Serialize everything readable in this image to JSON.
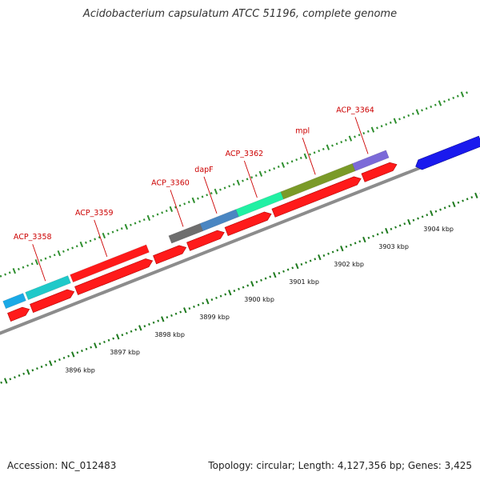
{
  "title": "Acidobacterium capsulatum ATCC 51196, complete genome",
  "footer": {
    "accession": "Accession: NC_012483",
    "summary": "Topology: circular; Length: 4,127,356 bp; Genes: 3,425"
  },
  "colors": {
    "backbone": "#8c8c8c",
    "cds": "#ff1a1a",
    "gene_label": "#cc0000",
    "tick_upper": "#2f8f2f",
    "tick_lower": "#1e7a1e"
  },
  "scale": {
    "unit": "kbp",
    "labels": [
      {
        "kbp": 3896,
        "text": "3896 kbp"
      },
      {
        "kbp": 3897,
        "text": "3897 kbp"
      },
      {
        "kbp": 3898,
        "text": "3898 kbp"
      },
      {
        "kbp": 3899,
        "text": "3899 kbp"
      },
      {
        "kbp": 3900,
        "text": "3900 kbp"
      },
      {
        "kbp": 3901,
        "text": "3901 kbp"
      },
      {
        "kbp": 3902,
        "text": "3902 kbp"
      },
      {
        "kbp": 3903,
        "text": "3903 kbp"
      },
      {
        "kbp": 3904,
        "text": "3904 kbp"
      }
    ]
  },
  "genes": [
    {
      "label": "",
      "start": 3895.05,
      "end": 3895.5,
      "color": "#1aa9e6"
    },
    {
      "label": "ACP_3358",
      "start": 3895.55,
      "end": 3896.5,
      "color": "#1fc9c9"
    },
    {
      "label": "ACP_3359",
      "start": 3896.55,
      "end": 3898.25,
      "color": "#ff1a1a"
    },
    {
      "label": "ACP_3360",
      "start": 3898.75,
      "end": 3899.45,
      "color": "#6e6e6e"
    },
    {
      "label": "dapF",
      "start": 3899.45,
      "end": 3900.25,
      "color": "#4a86c2"
    },
    {
      "label": "ACP_3362",
      "start": 3900.25,
      "end": 3901.25,
      "color": "#21f0a3"
    },
    {
      "label": "mpl",
      "start": 3901.25,
      "end": 3902.85,
      "color": "#7a9a28"
    },
    {
      "label": "ACP_3364",
      "start": 3902.85,
      "end": 3903.6,
      "color": "#7b6ad8"
    }
  ],
  "cds": [
    {
      "start": 3895.05,
      "end": 3895.5
    },
    {
      "start": 3895.55,
      "end": 3896.5
    },
    {
      "start": 3896.55,
      "end": 3898.25
    },
    {
      "start": 3898.3,
      "end": 3899.0
    },
    {
      "start": 3899.05,
      "end": 3899.85
    },
    {
      "start": 3899.9,
      "end": 3900.9
    },
    {
      "start": 3900.95,
      "end": 3902.9
    },
    {
      "start": 3902.95,
      "end": 3903.7
    }
  ],
  "other_strand": [
    {
      "start": 3904.05,
      "end": 3905.5,
      "color": "#1a1aee"
    }
  ]
}
